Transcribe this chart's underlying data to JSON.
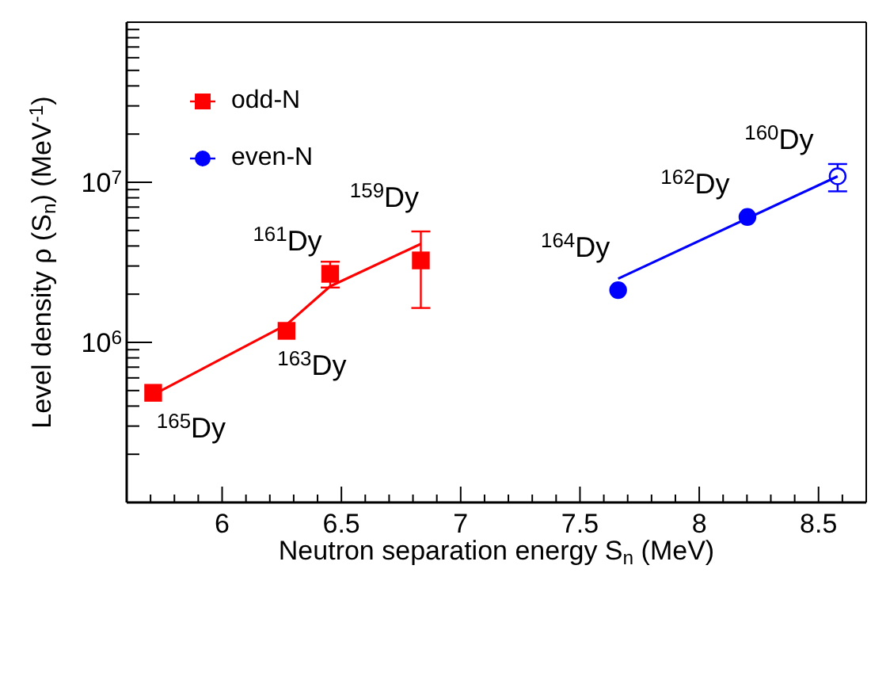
{
  "chart_data": {
    "type": "scatter",
    "xlabel": "Neutron separation energy S$_{n}$ (MeV)",
    "ylabel": "Level density ρ (S$_{n}$) (MeV$^{-1}$)",
    "xlim": [
      5.6,
      8.7
    ],
    "xticks": [
      {
        "value": 5.7,
        "label": null
      },
      {
        "value": 5.8,
        "label": null
      },
      {
        "value": 5.9,
        "label": null
      },
      6,
      {
        "value": 6.1,
        "label": null
      },
      {
        "value": 6.2,
        "label": null
      },
      {
        "value": 6.3,
        "label": null
      },
      {
        "value": 6.4,
        "label": null
      },
      6.5,
      {
        "value": 6.6,
        "label": null
      },
      {
        "value": 6.7,
        "label": null
      },
      {
        "value": 6.8,
        "label": null
      },
      {
        "value": 6.9,
        "label": null
      },
      7,
      {
        "value": 7.1,
        "label": null
      },
      {
        "value": 7.2,
        "label": null
      },
      {
        "value": 7.3,
        "label": null
      },
      {
        "value": 7.4,
        "label": null
      },
      7.5,
      {
        "value": 7.6,
        "label": null
      },
      {
        "value": 7.7,
        "label": null
      },
      {
        "value": 7.8,
        "label": null
      },
      {
        "value": 7.9,
        "label": null
      },
      8,
      {
        "value": 8.1,
        "label": null
      },
      {
        "value": 8.2,
        "label": null
      },
      {
        "value": 8.3,
        "label": null
      },
      {
        "value": 8.4,
        "label": null
      },
      8.5,
      {
        "value": 8.6,
        "label": null
      }
    ],
    "ylim": [
      100000,
      100000000
    ],
    "log": "y",
    "yticks": [
      {
        "value": 200000,
        "label": null
      },
      {
        "value": 300000,
        "label": null
      },
      {
        "value": 400000,
        "label": null
      },
      {
        "value": 500000,
        "label": null
      },
      {
        "value": 600000,
        "label": null
      },
      {
        "value": 700000,
        "label": null
      },
      {
        "value": 800000,
        "label": null
      },
      {
        "value": 900000,
        "label": null
      },
      {
        "value": 1000000,
        "label": "10$^{6}$"
      },
      {
        "value": 2000000,
        "label": null
      },
      {
        "value": 3000000,
        "label": null
      },
      {
        "value": 4000000,
        "label": null
      },
      {
        "value": 5000000,
        "label": null
      },
      {
        "value": 6000000,
        "label": null
      },
      {
        "value": 7000000,
        "label": null
      },
      {
        "value": 8000000,
        "label": null
      },
      {
        "value": 9000000,
        "label": null
      },
      {
        "value": 10000000,
        "label": "10$^{7}$"
      },
      {
        "value": 20000000,
        "label": null
      },
      {
        "value": 30000000,
        "label": null
      },
      {
        "value": 40000000,
        "label": null
      },
      {
        "value": 50000000,
        "label": null
      },
      {
        "value": 60000000,
        "label": null
      },
      {
        "value": 70000000,
        "label": null
      },
      {
        "value": 80000000,
        "label": null
      },
      {
        "value": 90000000,
        "label": null
      }
    ],
    "legend": "top left",
    "series": [
      {
        "name": "odd-N",
        "marker": "square",
        "color": "#ff0000",
        "x": [
          5.711,
          6.27,
          6.453,
          6.833
        ],
        "values": [
          484000,
          1180000,
          2680000,
          3250000
        ],
        "errors": [
          null,
          null,
          [
            2200000,
            3190000
          ],
          [
            1640000,
            4930000
          ]
        ]
      },
      {
        "type": "line",
        "marker": "none",
        "color": "#ff0000",
        "x": [
          5.711,
          6.27,
          6.453,
          6.833
        ],
        "values": [
          471000,
          1290000,
          2240000,
          4120000
        ]
      },
      {
        "name": "even-N",
        "marker": "circle",
        "color": "#0000ff",
        "x": [
          7.66,
          8.202
        ],
        "values": [
          2120000,
          6070000
        ]
      },
      {
        "marker": "circle",
        "color": "#0000ff",
        "x": [
          8.58
        ],
        "values": [
          10900000
        ],
        "errors": [
          [
            8780000,
            13000000
          ]
        ]
      },
      {
        "type": "line",
        "marker": "none",
        "color": "#0000ff",
        "x": [
          7.66,
          8.58
        ],
        "values": [
          2500000,
          10900000
        ]
      }
    ],
    "annotations": [
      {
        "text": "$^{165}$Dy",
        "x": 5.711,
        "y": 484000
      },
      {
        "text": "$^{163}$Dy",
        "x": 6.27,
        "y": 1180000
      },
      {
        "text": "$^{161}$Dy",
        "x": 6.453,
        "y": 2680000
      },
      {
        "text": "$^{159}$Dy",
        "x": 6.833,
        "y": 3250000
      },
      {
        "text": "$^{164}$Dy",
        "x": 7.66,
        "y": 2120000
      },
      {
        "text": "$^{162}$Dy",
        "x": 8.202,
        "y": 6070000
      },
      {
        "text": "$^{160}$Dy",
        "x": 8.58,
        "y": 10900000
      }
    ]
  }
}
